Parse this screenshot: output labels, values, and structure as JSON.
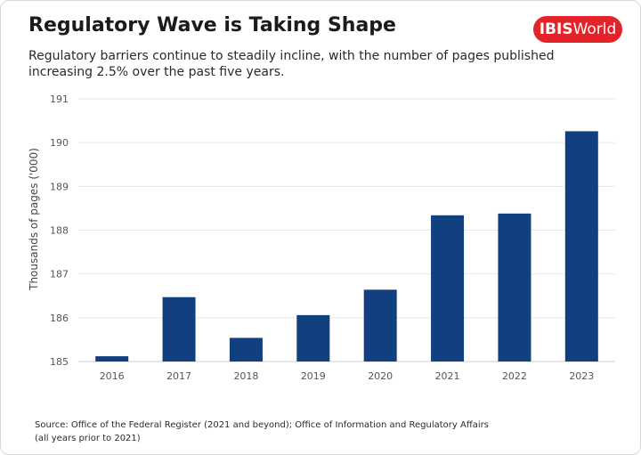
{
  "header": {
    "title": "Regulatory Wave is Taking Shape",
    "subtitle": "Regulatory barriers continue to steadily incline, with the number of pages published increasing 2.5% over the past five years.",
    "logo_bold": "IBIS",
    "logo_light": "World"
  },
  "footer": {
    "source": "Source: Office of the Federal Register (2021 and beyond); Office of Information and Regulatory Affairs (all years prior to 2021)"
  },
  "colors": {
    "bar": "#123f7f",
    "grid": "#e6e6e6",
    "brand": "#e2232a"
  },
  "chart_data": {
    "type": "bar",
    "title": "Regulatory Wave is Taking Shape",
    "ylabel": "Thousands of pages ('000)",
    "xlabel": "",
    "categories": [
      "2016",
      "2017",
      "2018",
      "2019",
      "2020",
      "2021",
      "2022",
      "2023"
    ],
    "values": [
      185.12,
      186.47,
      185.54,
      186.06,
      186.64,
      188.34,
      188.38,
      190.26
    ],
    "ylim": [
      185,
      191
    ],
    "yticks": [
      "185",
      "186",
      "187",
      "188",
      "189",
      "190",
      "191"
    ],
    "grid": true,
    "legend": "none"
  }
}
